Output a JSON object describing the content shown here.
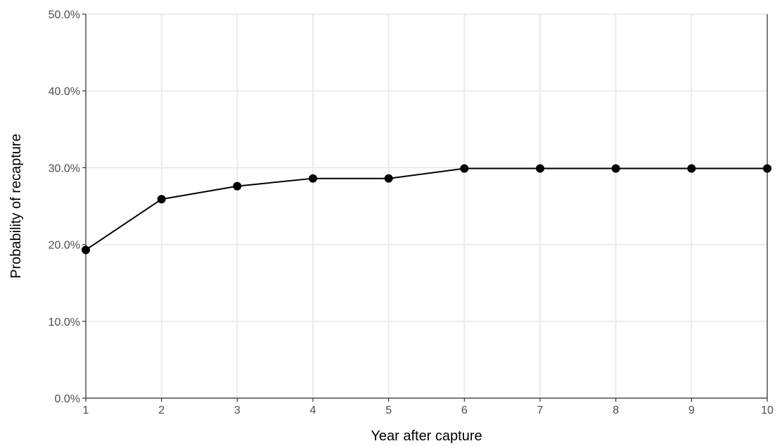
{
  "chart_data": {
    "type": "line",
    "title": "",
    "xlabel": "Year after capture",
    "ylabel": "Probability of recapture",
    "x": [
      1,
      2,
      3,
      4,
      5,
      6,
      7,
      8,
      9,
      10
    ],
    "series": [
      {
        "values": [
          0.193,
          0.259,
          0.276,
          0.286,
          0.286,
          0.299,
          0.299,
          0.299,
          0.299,
          0.299
        ]
      }
    ],
    "xlim": [
      1,
      10
    ],
    "ylim": [
      0,
      0.5
    ],
    "x_ticks": [
      1,
      2,
      3,
      4,
      5,
      6,
      7,
      8,
      9,
      10
    ],
    "x_tick_labels": [
      "1",
      "2",
      "3",
      "4",
      "5",
      "6",
      "7",
      "8",
      "9",
      "10"
    ],
    "y_ticks": [
      0,
      0.1,
      0.2,
      0.3,
      0.4,
      0.5
    ],
    "y_tick_labels": [
      "0.0%",
      "10.0%",
      "20.0%",
      "30.0%",
      "40.0%",
      "50.0%"
    ],
    "grid": true,
    "legend": "none",
    "colors": {
      "series": "#000000",
      "grid": "#ebebeb",
      "axis": "#333333",
      "tick_text": "#4d4d4d"
    }
  }
}
